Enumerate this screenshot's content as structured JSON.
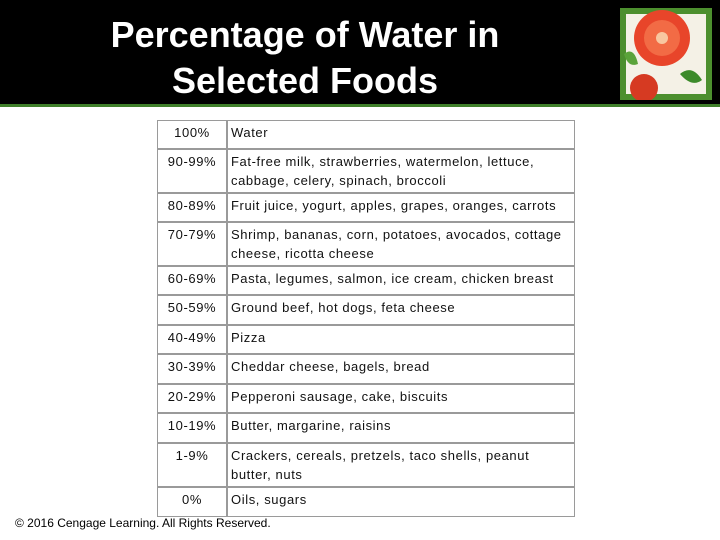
{
  "header": {
    "title": "Percentage of Water in Selected Foods"
  },
  "table": {
    "rows": [
      [
        "100%",
        "Water"
      ],
      [
        "90-99%",
        "Fat-free milk, strawberries, watermelon, lettuce, cabbage, celery, spinach, broccoli"
      ],
      [
        "80-89%",
        "Fruit juice, yogurt, apples, grapes, oranges, carrots"
      ],
      [
        "70-79%",
        "Shrimp, bananas, corn, potatoes, avocados, cottage cheese, ricotta cheese"
      ],
      [
        "60-69%",
        "Pasta, legumes, salmon, ice cream, chicken breast"
      ],
      [
        "50-59%",
        "Ground beef, hot dogs, feta cheese"
      ],
      [
        "40-49%",
        "Pizza"
      ],
      [
        "30-39%",
        "Cheddar cheese, bagels, bread"
      ],
      [
        "20-29%",
        "Pepperoni sausage, cake, biscuits"
      ],
      [
        "10-19%",
        "Butter, margarine, raisins"
      ],
      [
        "1-9%",
        "Crackers, cereals, pretzels, taco shells, peanut butter, nuts"
      ],
      [
        "0%",
        "Oils, sugars"
      ]
    ]
  },
  "footer": "© 2016 Cengage Learning. All Rights Reserved."
}
